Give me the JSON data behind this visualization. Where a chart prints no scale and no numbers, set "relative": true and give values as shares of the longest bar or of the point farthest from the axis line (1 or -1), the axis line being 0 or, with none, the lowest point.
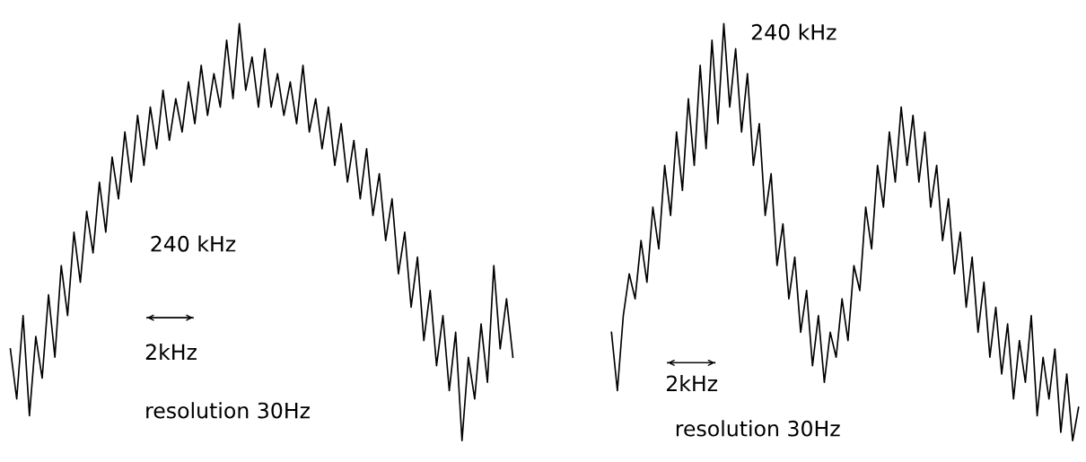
{
  "chart_data": [
    {
      "type": "line",
      "relative": true,
      "categories": [
        null,
        null,
        null,
        null,
        null,
        null,
        null,
        null,
        null,
        null,
        null,
        null,
        null,
        null,
        null,
        null,
        null,
        null,
        null,
        null,
        null,
        null,
        null,
        null,
        null,
        null,
        null,
        null,
        null,
        null,
        null,
        null,
        null,
        null,
        null,
        null,
        null,
        null,
        null,
        null,
        null,
        null,
        null,
        null,
        null,
        null,
        null,
        null,
        null,
        null,
        null,
        null,
        null,
        null,
        null,
        null,
        null,
        null,
        null,
        null,
        null,
        null,
        null,
        null,
        null,
        null,
        null,
        null,
        null,
        null,
        null,
        null,
        null,
        null,
        null,
        null,
        null,
        null,
        null,
        null
      ],
      "series": [
        {
          "color": "#000000",
          "values": [
            0.22,
            0.1,
            0.3,
            0.06,
            0.25,
            0.15,
            0.35,
            0.2,
            0.42,
            0.3,
            0.5,
            0.38,
            0.55,
            0.45,
            0.62,
            0.5,
            0.68,
            0.58,
            0.74,
            0.62,
            0.78,
            0.66,
            0.8,
            0.7,
            0.84,
            0.72,
            0.82,
            0.74,
            0.86,
            0.76,
            0.9,
            0.78,
            0.88,
            0.8,
            0.96,
            0.82,
            1.0,
            0.84,
            0.92,
            0.8,
            0.94,
            0.8,
            0.88,
            0.78,
            0.86,
            0.76,
            0.9,
            0.74,
            0.82,
            0.7,
            0.8,
            0.66,
            0.76,
            0.62,
            0.72,
            0.58,
            0.7,
            0.54,
            0.64,
            0.48,
            0.58,
            0.4,
            0.5,
            0.32,
            0.44,
            0.24,
            0.36,
            0.18,
            0.3,
            0.12,
            0.26,
            0.0,
            0.2,
            0.1,
            0.28,
            0.14,
            0.42,
            0.22,
            0.34,
            0.2
          ]
        }
      ],
      "annotations": [
        "240 kHz",
        "2kHz",
        "resolution 30Hz"
      ]
    },
    {
      "type": "line",
      "relative": true,
      "categories": [
        null,
        null,
        null,
        null,
        null,
        null,
        null,
        null,
        null,
        null,
        null,
        null,
        null,
        null,
        null,
        null,
        null,
        null,
        null,
        null,
        null,
        null,
        null,
        null,
        null,
        null,
        null,
        null,
        null,
        null,
        null,
        null,
        null,
        null,
        null,
        null,
        null,
        null,
        null,
        null,
        null,
        null,
        null,
        null,
        null,
        null,
        null,
        null,
        null,
        null,
        null,
        null,
        null,
        null,
        null,
        null,
        null,
        null,
        null,
        null,
        null,
        null,
        null,
        null,
        null,
        null,
        null,
        null,
        null,
        null,
        null,
        null,
        null,
        null,
        null,
        null,
        null,
        null,
        null,
        null
      ],
      "series": [
        {
          "color": "#000000",
          "values": [
            0.26,
            0.12,
            0.3,
            0.4,
            0.34,
            0.48,
            0.38,
            0.56,
            0.46,
            0.66,
            0.54,
            0.74,
            0.6,
            0.82,
            0.66,
            0.9,
            0.7,
            0.96,
            0.76,
            1.0,
            0.8,
            0.94,
            0.74,
            0.88,
            0.66,
            0.76,
            0.54,
            0.64,
            0.42,
            0.52,
            0.34,
            0.44,
            0.26,
            0.36,
            0.18,
            0.3,
            0.14,
            0.26,
            0.2,
            0.34,
            0.24,
            0.42,
            0.36,
            0.56,
            0.46,
            0.66,
            0.56,
            0.74,
            0.62,
            0.8,
            0.66,
            0.78,
            0.62,
            0.74,
            0.56,
            0.66,
            0.48,
            0.58,
            0.4,
            0.5,
            0.32,
            0.44,
            0.26,
            0.38,
            0.2,
            0.32,
            0.16,
            0.28,
            0.1,
            0.24,
            0.14,
            0.3,
            0.06,
            0.2,
            0.1,
            0.22,
            0.02,
            0.16,
            0.0,
            0.08
          ]
        }
      ],
      "annotations": [
        "240 kHz",
        "2kHz",
        "resolution 30Hz"
      ]
    }
  ]
}
